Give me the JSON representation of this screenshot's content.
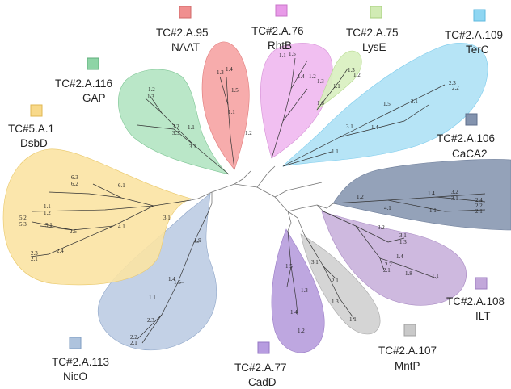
{
  "families": [
    {
      "id": "nico",
      "tc": "TC#2.A.113",
      "name": "NicO",
      "color": "#b8c9e2",
      "legend": "#aec3dd",
      "tips": [
        "1.9",
        "1.4",
        "1.5",
        "1.1",
        "2.3",
        "2.2",
        "2.1"
      ]
    },
    {
      "id": "dsbd",
      "tc": "TC#5.A.1",
      "name": "DsbD",
      "color": "#fbe3a3",
      "legend": "#f8d98a",
      "tips": [
        "6.3",
        "6.2",
        "6.1",
        "1.1",
        "1.2",
        "5.2",
        "5.3",
        "5.1",
        "2.6",
        "4.1",
        "3.1",
        "2.3",
        "2.1",
        "2.4"
      ]
    },
    {
      "id": "gap",
      "tc": "TC#2.A.116",
      "name": "GAP",
      "color": "#b2e4c2",
      "legend": "#8ed4a6",
      "tips": [
        "1.2",
        "1.3",
        "3.2",
        "3.3",
        "1.1",
        "3.1"
      ]
    },
    {
      "id": "naat",
      "tc": "TC#2.A.95",
      "name": "NAAT",
      "color": "#f6a3a3",
      "legend": "#f08f8f",
      "tips": [
        "1.3",
        "1.4",
        "1.5",
        "1.1",
        "1.2"
      ]
    },
    {
      "id": "rhtb",
      "tc": "TC#2.A.76",
      "name": "RhtB",
      "color": "#f0b8f0",
      "legend": "#e89ae8",
      "tips": [
        "1.1",
        "1.5",
        "1.4",
        "1.2",
        "1.3",
        "1.6"
      ]
    },
    {
      "id": "lyse",
      "tc": "TC#2.A.75",
      "name": "LysE",
      "color": "#d8efbf",
      "legend": "#d1ebb4",
      "tips": [
        "1.3",
        "1.2",
        "1.1"
      ]
    },
    {
      "id": "terc",
      "tc": "TC#2.A.109",
      "name": "TerC",
      "color": "#aee1f5",
      "legend": "#8fd6f2",
      "tips": [
        "2.3",
        "2.2",
        "1.5",
        "2.1",
        "1.4",
        "3.1",
        "1.1"
      ]
    },
    {
      "id": "caca2",
      "tc": "TC#2.A.106",
      "name": "CaCA2",
      "color": "#8e9db5",
      "legend": "#8393ae",
      "tips": [
        "1.2",
        "1.4",
        "3.2",
        "3.1",
        "2.4",
        "2.2",
        "4.1",
        "1.1",
        "2.1"
      ]
    },
    {
      "id": "ilt",
      "tc": "TC#2.A.108",
      "name": "ILT",
      "color": "#c9b1dc",
      "legend": "#c2a7da",
      "tips": [
        "3.2",
        "3.1",
        "1.3",
        "1.4",
        "2.2",
        "2.1",
        "1.8",
        "1.1"
      ]
    },
    {
      "id": "mntp",
      "tc": "TC#2.A.107",
      "name": "MntP",
      "color": "#d0d0d0",
      "legend": "#c9c9c9",
      "tips": [
        "3.1",
        "2.1",
        "1.3",
        "1.1"
      ]
    },
    {
      "id": "cadd",
      "tc": "TC#2.A.77",
      "name": "CadD",
      "color": "#b9a0dd",
      "legend": "#b79ce0",
      "tips": [
        "1.5",
        "1.3",
        "1.4",
        "1.2"
      ]
    }
  ]
}
